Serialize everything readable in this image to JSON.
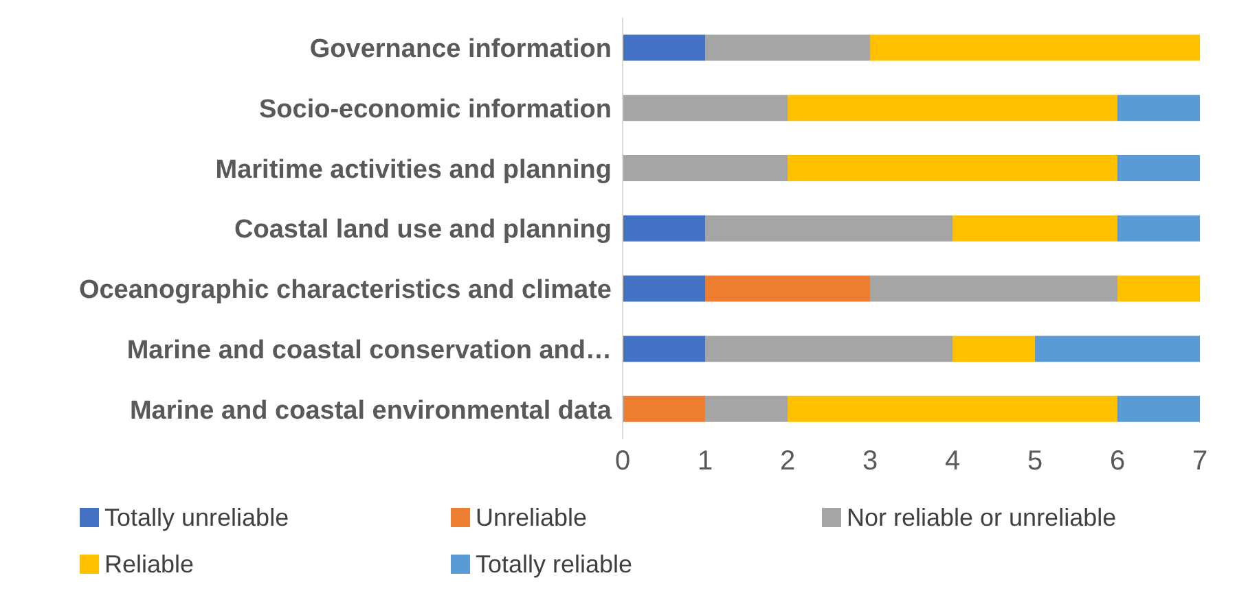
{
  "chart_data": {
    "type": "bar",
    "orientation": "horizontal",
    "stacked": true,
    "categories": [
      "Governance information",
      "Socio-economic information",
      "Maritime activities and planning",
      "Coastal land use and planning",
      "Oceanographic characteristics and climate",
      "Marine and coastal conservation and…",
      "Marine and coastal environmental data"
    ],
    "series": [
      {
        "name": "Totally unreliable",
        "color": "#4472c4",
        "values": [
          1,
          0,
          0,
          1,
          1,
          1,
          0
        ]
      },
      {
        "name": "Unreliable",
        "color": "#ed7d31",
        "values": [
          0,
          0,
          0,
          0,
          2,
          0,
          1
        ]
      },
      {
        "name": "Nor reliable or unreliable",
        "color": "#a5a5a5",
        "values": [
          2,
          2,
          2,
          3,
          3,
          3,
          1
        ]
      },
      {
        "name": "Reliable",
        "color": "#ffc000",
        "values": [
          4,
          4,
          4,
          2,
          1,
          1,
          4
        ]
      },
      {
        "name": "Totally reliable",
        "color": "#5b9bd5",
        "values": [
          0,
          1,
          1,
          1,
          0,
          2,
          1
        ]
      }
    ],
    "xlim": [
      0,
      7
    ],
    "xticks": [
      0,
      1,
      2,
      3,
      4,
      5,
      6,
      7
    ],
    "grid": false,
    "legend": "bottom"
  }
}
